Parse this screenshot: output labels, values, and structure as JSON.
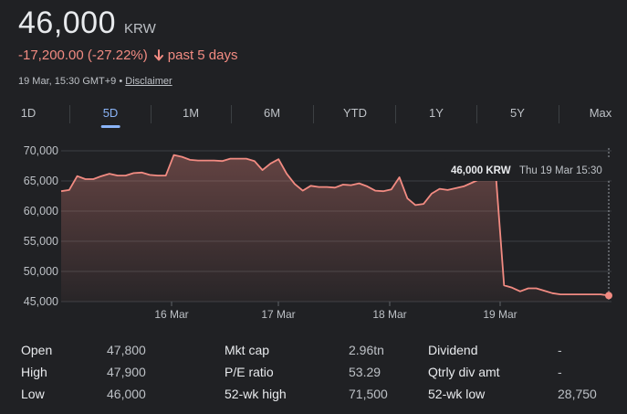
{
  "quote": {
    "price": "46,000",
    "currency": "KRW",
    "change": "-17,200.00 (-27.22%)",
    "period": "past 5 days",
    "timestamp": "19 Mar, 15:30 GMT+9",
    "separator": "•",
    "disclaimer": "Disclaimer",
    "change_color": "#f28b82"
  },
  "tabs": [
    {
      "label": "1D",
      "active": false
    },
    {
      "label": "5D",
      "active": true
    },
    {
      "label": "1M",
      "active": false
    },
    {
      "label": "6M",
      "active": false
    },
    {
      "label": "YTD",
      "active": false
    },
    {
      "label": "1Y",
      "active": false
    },
    {
      "label": "5Y",
      "active": false
    },
    {
      "label": "Max",
      "active": false
    }
  ],
  "tooltip": {
    "value": "46,000 KRW",
    "time": "Thu 19 Mar 15:30"
  },
  "chart_data": {
    "type": "area",
    "title": "",
    "xlabel": "",
    "ylabel": "",
    "ylim": [
      45000,
      70000
    ],
    "y_ticks": [
      70000,
      65000,
      60000,
      55000,
      50000,
      45000
    ],
    "y_tick_labels": [
      "70,000",
      "65,000",
      "60,000",
      "55,000",
      "50,000",
      "45,000"
    ],
    "x_tick_labels": [
      "16 Mar",
      "17 Mar",
      "18 Mar",
      "19 Mar"
    ],
    "grid": true,
    "line_color": "#f28b82",
    "series": [
      {
        "values": [
          63300,
          63500,
          65800,
          65300,
          65300,
          65800,
          66200,
          65900,
          65900,
          66300,
          66400,
          66000,
          65900,
          65900,
          69300,
          69000,
          68500,
          68400,
          68400,
          68400,
          68300,
          68700,
          68700,
          68700,
          68300,
          66800,
          67900,
          68600,
          66200,
          64500,
          63400,
          64200,
          64000,
          64000,
          63900,
          64400,
          64300,
          64600,
          64100,
          63400,
          63300,
          63600,
          65600,
          62100,
          61000,
          61200,
          62900,
          63700,
          63500,
          63800,
          64100,
          64700,
          65300,
          65600,
          65600,
          47700,
          47300,
          46700,
          47200,
          47200,
          46800,
          46400,
          46200,
          46200,
          46200,
          46200,
          46200,
          46200,
          46000
        ]
      }
    ]
  },
  "stats": {
    "col1": [
      {
        "label": "Open",
        "value": "47,800"
      },
      {
        "label": "High",
        "value": "47,900"
      },
      {
        "label": "Low",
        "value": "46,000"
      }
    ],
    "col2": [
      {
        "label": "Mkt cap",
        "value": "2.96tn"
      },
      {
        "label": "P/E ratio",
        "value": "53.29"
      },
      {
        "label": "52-wk high",
        "value": "71,500"
      }
    ],
    "col3": [
      {
        "label": "Dividend",
        "value": "-"
      },
      {
        "label": "Qtrly div amt",
        "value": "-"
      },
      {
        "label": "52-wk low",
        "value": "28,750"
      }
    ]
  }
}
